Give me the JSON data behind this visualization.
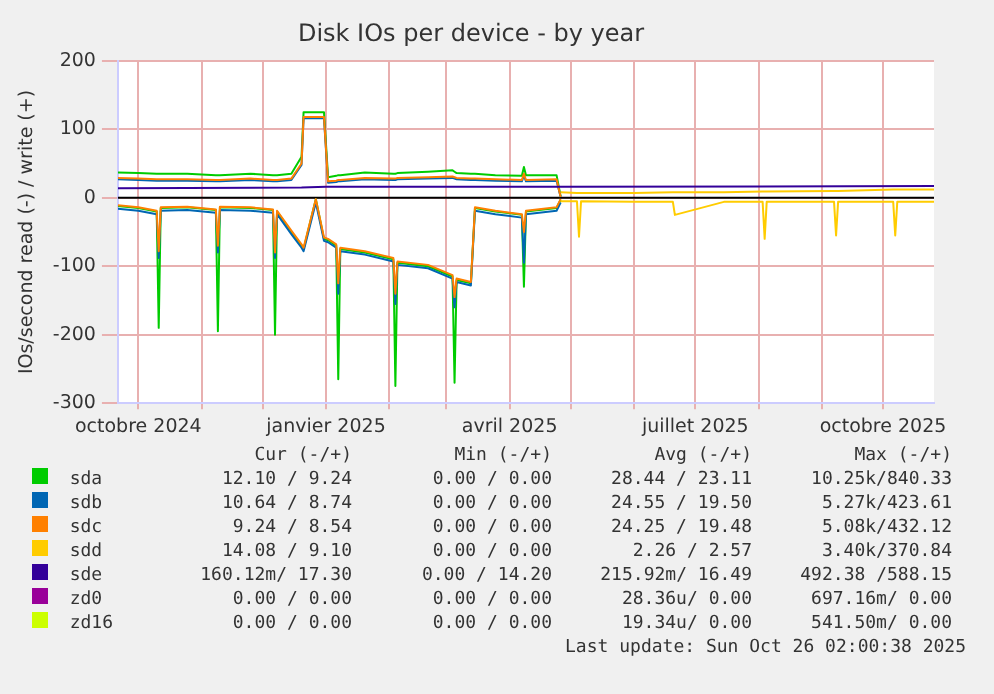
{
  "chart_data": {
    "type": "line",
    "title": "Disk IOs per device - by year",
    "ylabel": "IOs/second read (-) / write (+)",
    "x": [
      "2024-09-21",
      "2024-10-01",
      "2024-10-10",
      "2024-10-11",
      "2024-10-12",
      "2024-10-25",
      "2024-11-08",
      "2024-11-09",
      "2024-11-10",
      "2024-11-25",
      "2024-12-06",
      "2024-12-07",
      "2024-12-08",
      "2024-12-15",
      "2024-12-20",
      "2024-12-21",
      "2024-12-27",
      "2024-12-31",
      "2025-01-02",
      "2025-01-06",
      "2025-01-07",
      "2025-01-08",
      "2025-01-20",
      "2025-02-03",
      "2025-02-04",
      "2025-02-05",
      "2025-02-20",
      "2025-03-04",
      "2025-03-05",
      "2025-03-06",
      "2025-03-13",
      "2025-03-15",
      "2025-03-25",
      "2025-04-07",
      "2025-04-08",
      "2025-04-09",
      "2025-04-24",
      "2025-04-26"
    ],
    "series": [
      {
        "name": "sda",
        "color": "#00cc00",
        "values": [
          37,
          36,
          35,
          35,
          35,
          35,
          33,
          33,
          33,
          35,
          33,
          33,
          33,
          35,
          60,
          125,
          125,
          125,
          30,
          32,
          33,
          33,
          37,
          35,
          35,
          36,
          38,
          40,
          38,
          36,
          35,
          35,
          33,
          32,
          45,
          33,
          33,
          2
        ]
      },
      {
        "name": "sdb",
        "color": "#0066b3",
        "values": [
          27,
          26,
          25,
          25,
          25,
          25,
          24,
          24,
          24,
          26,
          24,
          24,
          24,
          26,
          48,
          116,
          116,
          116,
          22,
          23,
          24,
          24,
          27,
          26,
          26,
          27,
          28,
          29,
          28,
          27,
          26,
          26,
          25,
          24,
          33,
          24,
          25,
          1
        ]
      },
      {
        "name": "sdc",
        "color": "#ff8000",
        "values": [
          29,
          28,
          27,
          27,
          27,
          27,
          26,
          26,
          26,
          28,
          26,
          26,
          26,
          28,
          50,
          118,
          118,
          118,
          24,
          25,
          26,
          26,
          29,
          28,
          28,
          29,
          30,
          31,
          30,
          29,
          28,
          28,
          27,
          26,
          35,
          26,
          27,
          1
        ]
      },
      {
        "name": "sdd",
        "color": "#ffcc00",
        "x": [
          "2025-04-26",
          "2025-05-04",
          "2025-05-05",
          "2025-05-06",
          "2025-06-01",
          "2025-06-20",
          "2025-06-21",
          "2025-07-15",
          "2025-08-03",
          "2025-08-04",
          "2025-08-05",
          "2025-09-07",
          "2025-09-08",
          "2025-09-09",
          "2025-10-06",
          "2025-10-07",
          "2025-10-08",
          "2025-10-26"
        ],
        "values": [
          8,
          7,
          7,
          7,
          7,
          8,
          8,
          8,
          9,
          9,
          9,
          10,
          10,
          10,
          12,
          12,
          12,
          12
        ]
      },
      {
        "name": "sde",
        "color": "#330099",
        "x": [
          "2024-09-21",
          "2024-12-20",
          "2025-01-01",
          "2025-04-26",
          "2025-10-26"
        ],
        "values": [
          14,
          15,
          16,
          16,
          17
        ]
      },
      {
        "color": "#00cc00",
        "values": [
          -12,
          -15,
          -20,
          -190,
          -15,
          -14,
          -18,
          -195,
          -14,
          -15,
          -18,
          -200,
          -20,
          -50,
          -70,
          -75,
          -2,
          -60,
          -62,
          -70,
          -265,
          -75,
          -80,
          -90,
          -275,
          -95,
          -100,
          -115,
          -270,
          -120,
          -125,
          -15,
          -20,
          -25,
          -130,
          -20,
          -15,
          -3
        ]
      },
      {
        "color": "#0066b3",
        "values": [
          -16,
          -19,
          -24,
          -88,
          -19,
          -18,
          -22,
          -80,
          -18,
          -19,
          -22,
          -88,
          -24,
          -53,
          -73,
          -78,
          -7,
          -63,
          -65,
          -73,
          -140,
          -78,
          -83,
          -93,
          -155,
          -98,
          -103,
          -118,
          -160,
          -123,
          -128,
          -19,
          -24,
          -29,
          -95,
          -24,
          -19,
          -7
        ]
      },
      {
        "color": "#ff8000",
        "values": [
          -11,
          -14,
          -19,
          -78,
          -14,
          -13,
          -17,
          -70,
          -13,
          -14,
          -17,
          -80,
          -19,
          -48,
          -68,
          -73,
          -2,
          -58,
          -60,
          -68,
          -125,
          -73,
          -78,
          -88,
          -140,
          -93,
          -98,
          -113,
          -145,
          -118,
          -123,
          -14,
          -19,
          -24,
          -50,
          -19,
          -14,
          -2
        ]
      },
      {
        "color": "#ffcc00",
        "x": [
          "2025-04-26",
          "2025-05-04",
          "2025-05-05",
          "2025-05-06",
          "2025-06-01",
          "2025-06-20",
          "2025-06-21",
          "2025-07-15",
          "2025-08-03",
          "2025-08-04",
          "2025-08-05",
          "2025-09-07",
          "2025-09-08",
          "2025-09-09",
          "2025-10-06",
          "2025-10-07",
          "2025-10-08",
          "2025-10-26"
        ],
        "values": [
          -5,
          -5,
          -57,
          -5,
          -6,
          -6,
          -25,
          -6,
          -6,
          -60,
          -6,
          -6,
          -55,
          -6,
          -6,
          -55,
          -6,
          -6
        ]
      },
      {
        "name": "zd0",
        "color": "#990099",
        "values": [
          null,
          null,
          null,
          null,
          null,
          null,
          null,
          null,
          null,
          null,
          null,
          null,
          null,
          null,
          null,
          null,
          null,
          null,
          null,
          null,
          null,
          null,
          null,
          null,
          null,
          null,
          null,
          null,
          null,
          null,
          null,
          null,
          null,
          null,
          null,
          null,
          null,
          null
        ]
      },
      {
        "name": "zd16",
        "color": "#ccff00",
        "values": [
          null,
          null,
          null,
          null,
          null,
          null,
          null,
          null,
          null,
          null,
          null,
          null,
          null,
          null,
          null,
          null,
          null,
          null,
          null,
          null,
          null,
          null,
          null,
          null,
          null,
          null,
          null,
          null,
          null,
          null,
          null,
          null,
          null,
          null,
          null,
          null,
          null,
          null
        ]
      }
    ],
    "xlim": [
      "2024-09-21",
      "2025-10-26"
    ],
    "xticks": [
      {
        "value": "2024-10-01",
        "label": "octobre 2024"
      },
      {
        "value": "2024-11-01",
        "label": null
      },
      {
        "value": "2024-12-01",
        "label": null
      },
      {
        "value": "2025-01-01",
        "label": "janvier 2025"
      },
      {
        "value": "2025-02-01",
        "label": null
      },
      {
        "value": "2025-03-01",
        "label": null
      },
      {
        "value": "2025-04-01",
        "label": "avril 2025"
      },
      {
        "value": "2025-05-01",
        "label": null
      },
      {
        "value": "2025-06-01",
        "label": null
      },
      {
        "value": "2025-07-01",
        "label": "juillet 2025"
      },
      {
        "value": "2025-08-01",
        "label": null
      },
      {
        "value": "2025-09-01",
        "label": null
      },
      {
        "value": "2025-10-01",
        "label": "octobre 2025"
      }
    ],
    "ylim": [
      -300,
      200
    ],
    "yticks": [
      -300,
      -200,
      -100,
      0,
      100,
      200
    ],
    "ref_lines": [
      {
        "axis": "y",
        "value": 0,
        "color": "#000000"
      }
    ],
    "grid": true,
    "legend": "bottom",
    "marker": "none",
    "line_style": "solid",
    "annotations": [
      "Cur (-/+)",
      "Min (-/+)",
      "Avg (-/+)",
      "Max (-/+)",
      "12.10 / 9.24",
      "0.00 / 0.00",
      "28.44 / 23.11",
      "10.25k/840.33",
      "10.64 / 8.74",
      "0.00 / 0.00",
      "24.55 / 19.50",
      "5.27k/423.61",
      "9.24 / 8.54",
      "0.00 / 0.00",
      "24.25 / 19.48",
      "5.08k/432.12",
      "14.08 / 9.10",
      "0.00 / 0.00",
      "2.26 / 2.57",
      "3.40k/370.84",
      "160.12m/ 17.30",
      "0.00 / 14.20",
      "215.92m/ 16.49",
      "492.38 /588.15",
      "0.00 / 0.00",
      "0.00 / 0.00",
      "28.36u/ 0.00",
      "697.16m/ 0.00",
      "0.00 / 0.00",
      "0.00 / 0.00",
      "19.34u/ 0.00",
      "541.50m/ 0.00",
      "Last update: Sun Oct 26 02:00:38 2025"
    ]
  }
}
